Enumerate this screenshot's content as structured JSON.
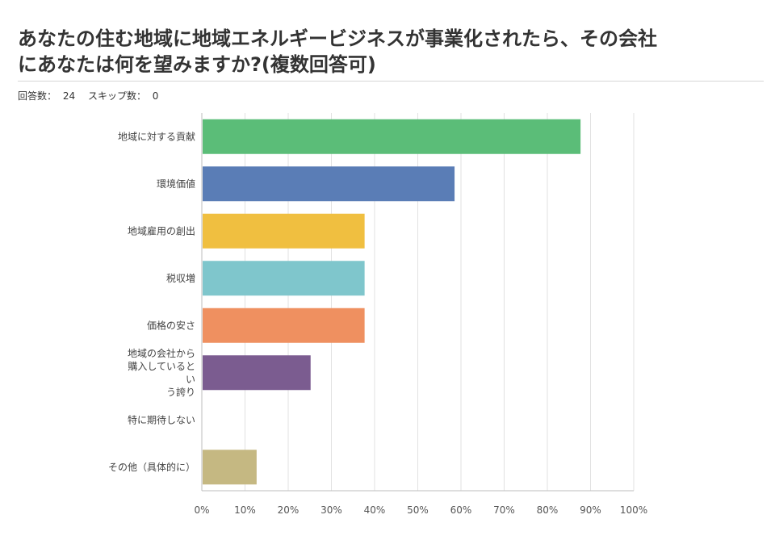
{
  "page": {
    "title_line1": "あなたの住む地域に地域エネルギービジネスが事業化されたら、その会社",
    "title_line2": "にあなたは何を望みますか?(複数回答可)",
    "answered_label": "回答数：",
    "answered_value": "24",
    "skipped_label": "スキップ数：",
    "skipped_value": "0"
  },
  "chart_data": {
    "type": "bar",
    "orientation": "horizontal",
    "categories": [
      [
        "地域に対する貢献"
      ],
      [
        "環境価値"
      ],
      [
        "地域雇用の創出"
      ],
      [
        "税収増"
      ],
      [
        "価格の安さ"
      ],
      [
        "地域の会社から",
        "購入していると",
        "い",
        "う誇り"
      ],
      [
        "特に期待しない"
      ],
      [
        "その他（具体的に）"
      ]
    ],
    "values": [
      87.5,
      58.33,
      37.5,
      37.5,
      37.5,
      25.0,
      0,
      12.5
    ],
    "colors": [
      "#5bbd78",
      "#5a7db6",
      "#f0bf40",
      "#7fc6cc",
      "#ef9060",
      "#7b5c90",
      "#aaaaaa",
      "#c5b882"
    ],
    "xlim": [
      0,
      100
    ],
    "ticks": [
      "0%",
      "10%",
      "20%",
      "30%",
      "40%",
      "50%",
      "60%",
      "70%",
      "80%",
      "90%",
      "100%"
    ],
    "grid": true
  }
}
